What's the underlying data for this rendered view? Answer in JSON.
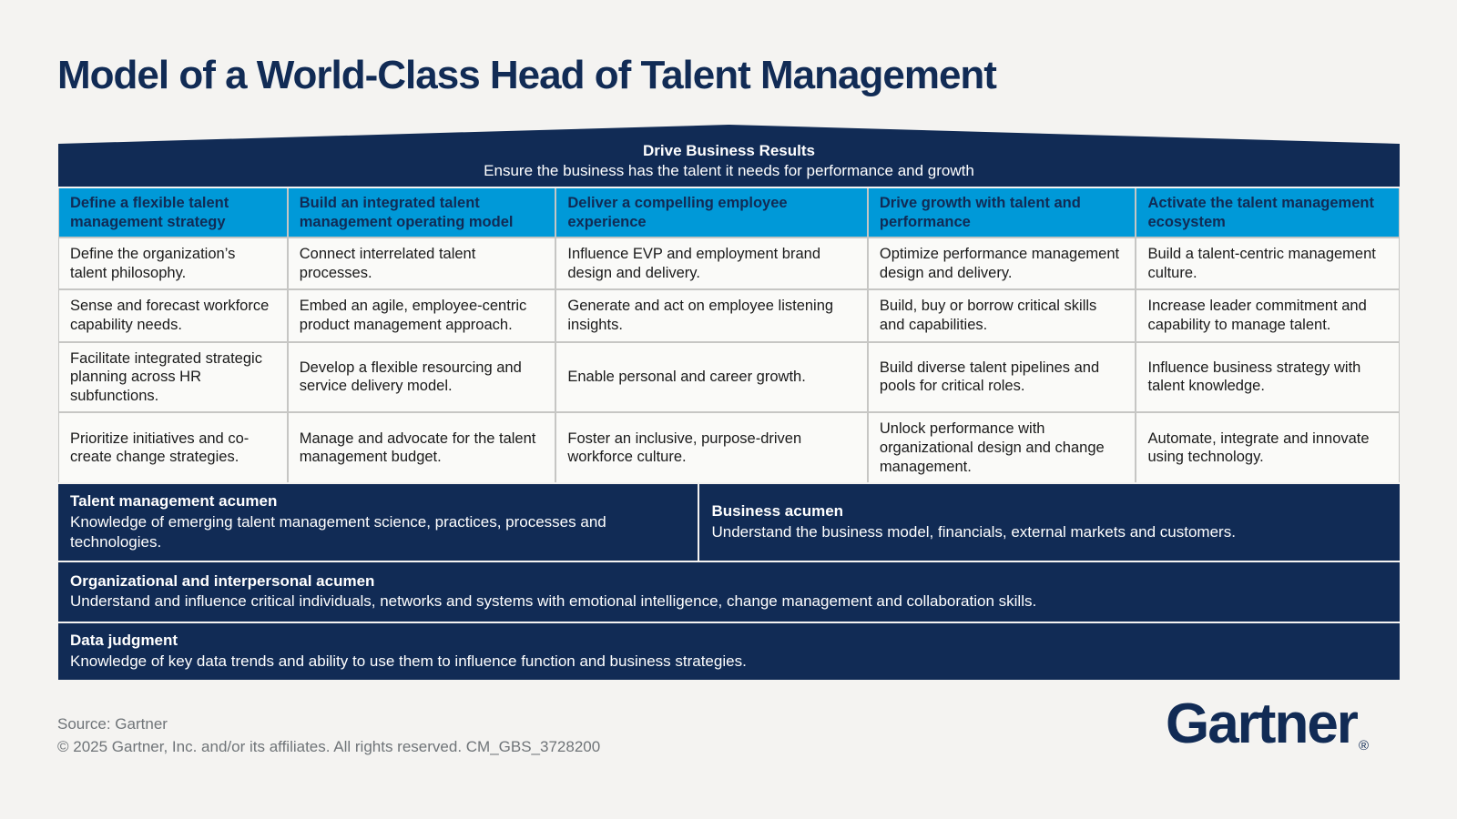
{
  "title": "Model of a World-Class Head of Talent Management",
  "banner": {
    "heading": "Drive Business Results",
    "subheading": "Ensure the business has the talent it needs for performance and growth"
  },
  "columns": [
    {
      "header": "Define a flexible talent management strategy",
      "items": [
        "Define the organization’s talent philosophy.",
        "Sense and forecast workforce capability needs.",
        "Facilitate integrated strategic planning across HR subfunctions.",
        "Prioritize initiatives and co-create change strategies."
      ]
    },
    {
      "header": "Build an integrated talent management operating model",
      "items": [
        "Connect interrelated talent processes.",
        "Embed an agile, employee-centric product management approach.",
        "Develop a flexible resourcing and service delivery model.",
        "Manage and advocate for the talent management budget."
      ]
    },
    {
      "header": "Deliver a compelling employee experience",
      "items": [
        "Influence EVP and employment brand design and delivery.",
        "Generate and act on employee listening insights.",
        "Enable personal and career growth.",
        "Foster an inclusive, purpose-driven workforce culture."
      ]
    },
    {
      "header": "Drive growth with talent and performance",
      "items": [
        "Optimize performance management design and delivery.",
        "Build, buy or borrow critical skills and capabilities.",
        "Build diverse talent pipelines and pools for critical roles.",
        "Unlock performance with organizational design and change management."
      ]
    },
    {
      "header": "Activate the talent management ecosystem",
      "items": [
        "Build a talent-centric management culture.",
        "Increase leader commitment and capability to manage talent.",
        "Influence business strategy with talent knowledge.",
        "Automate, integrate and innovate using technology."
      ]
    }
  ],
  "bands": [
    {
      "heading": "Talent management acumen",
      "desc": "Knowledge of emerging talent management science, practices, processes and technologies."
    },
    {
      "heading": "Business acumen",
      "desc": "Understand the business model, financials, external markets and customers."
    },
    {
      "heading": "Organizational and interpersonal acumen",
      "desc": "Understand and influence critical individuals, networks and systems with emotional intelligence, change management and collaboration skills."
    },
    {
      "heading": "Data judgment",
      "desc": "Knowledge of key data trends and ability to use them to influence function and business strategies."
    }
  ],
  "footer": {
    "source": "Source: Gartner",
    "copyright": "© 2025 Gartner, Inc. and/or its affiliates. All rights reserved. CM_GBS_3728200"
  },
  "logo": {
    "text": "Gartner",
    "registered": "®"
  },
  "colors": {
    "navy": "#112b55",
    "light_blue": "#0099d8",
    "background": "#f4f3f1",
    "cell": "#fafaf8"
  }
}
